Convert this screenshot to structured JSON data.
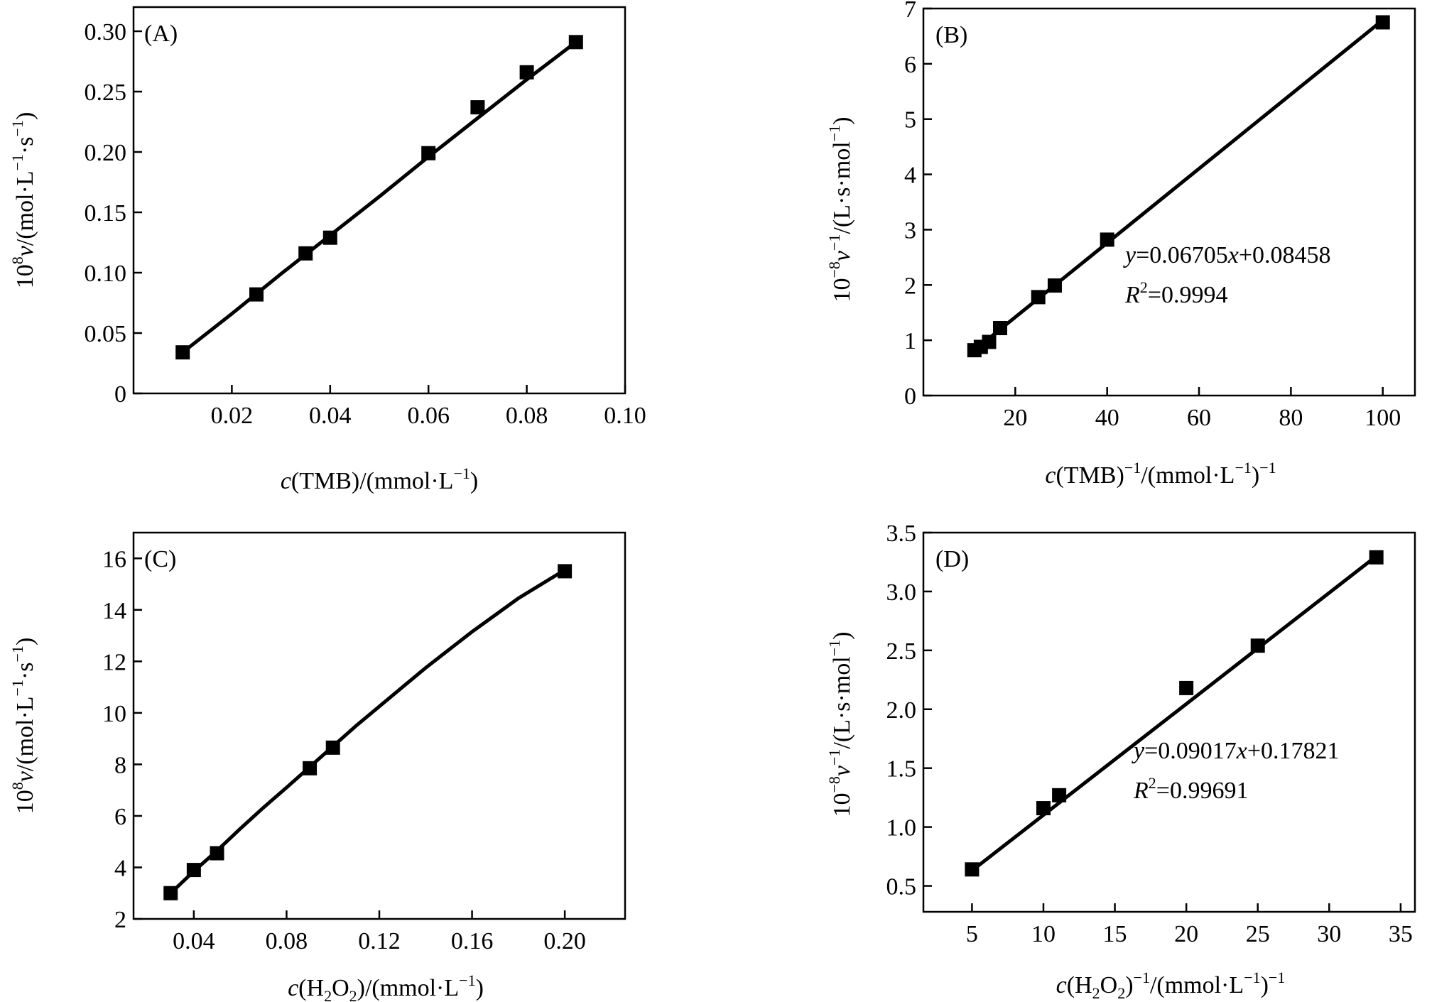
{
  "chart_data": [
    {
      "panel": "A",
      "type": "scatter",
      "panel_label": "(A)",
      "xlabel": {
        "italic": "c",
        "rest": "(TMB)/(mmol·L",
        "sup": "−1",
        "end": ")"
      },
      "ylabel": {
        "prefix": "10",
        "prefix_sup": "8",
        "var": "v",
        "rest": "/(mol·L",
        "sup1": "−1",
        "mid": "·s",
        "sup2": "−1",
        "end": ")"
      },
      "xlim": [
        0.0,
        0.1
      ],
      "ylim": [
        0.0,
        0.32
      ],
      "xticks": [
        0.02,
        0.04,
        0.06,
        0.08,
        0.1
      ],
      "xtick_labels": [
        "0.02",
        "0.04",
        "0.06",
        "0.08",
        "0.10"
      ],
      "yticks": [
        0,
        0.05,
        0.1,
        0.15,
        0.2,
        0.25,
        0.3
      ],
      "ytick_labels": [
        "0",
        "0.05",
        "0.10",
        "0.15",
        "0.20",
        "0.25",
        "0.30"
      ],
      "series": [
        {
          "name": "data",
          "x": [
            0.01,
            0.025,
            0.035,
            0.04,
            0.06,
            0.07,
            0.08,
            0.09
          ],
          "y": [
            0.034,
            0.082,
            0.116,
            0.129,
            0.199,
            0.237,
            0.266,
            0.291
          ]
        }
      ],
      "fit": {
        "x": [
          0.01,
          0.02,
          0.03,
          0.04,
          0.05,
          0.06,
          0.07,
          0.08,
          0.09
        ],
        "y": [
          0.034,
          0.066,
          0.099,
          0.131,
          0.163,
          0.196,
          0.228,
          0.26,
          0.291
        ]
      }
    },
    {
      "panel": "B",
      "type": "scatter",
      "panel_label": "(B)",
      "xlabel": {
        "italic": "c",
        "rest": "(TMB)",
        "sup1": "−1",
        "mid": "/(mmol·L",
        "sup2": "−1",
        "end": ")",
        "sup3": "−1"
      },
      "ylabel": {
        "prefix": "10",
        "prefix_sup": "−8",
        "var": "v",
        "var_sup": "−1",
        "rest": "/(L·s·mol",
        "sup1": "−1",
        "end": ")"
      },
      "xlim": [
        0,
        107
      ],
      "ylim": [
        0,
        7.0
      ],
      "xticks": [
        20,
        40,
        60,
        80,
        100
      ],
      "xtick_labels": [
        "20",
        "40",
        "60",
        "80",
        "100"
      ],
      "yticks": [
        0,
        1,
        2,
        3,
        4,
        5,
        6,
        7
      ],
      "ytick_labels": [
        "0",
        "1",
        "2",
        "3",
        "4",
        "5",
        "6",
        "7"
      ],
      "series": [
        {
          "name": "data",
          "x": [
            11.1,
            12.5,
            14.3,
            16.7,
            25,
            28.6,
            40,
            100
          ],
          "y": [
            0.82,
            0.88,
            0.97,
            1.22,
            1.78,
            1.99,
            2.82,
            6.75
          ]
        }
      ],
      "fit": {
        "x": [
          11.1,
          100
        ],
        "y": [
          0.82,
          6.79
        ]
      },
      "equation": {
        "y": "y",
        "eq": "=0.06705",
        "x": "x",
        "tail": "+0.08458"
      },
      "r2": {
        "R": "R",
        "sup": "2",
        "eq": "=0.9994"
      }
    },
    {
      "panel": "C",
      "type": "scatter",
      "panel_label": "(C)",
      "xlabel": {
        "italic": "c",
        "rest": "(H",
        "sub": "2",
        "rest2": "O",
        "sub2": "2",
        "rest3": ")/(mmol·L",
        "sup": "−1",
        "end": ")"
      },
      "ylabel": {
        "prefix": "10",
        "prefix_sup": "8",
        "var": "v",
        "rest": "/(mol·L",
        "sup1": "−1",
        "mid": "·s",
        "sup2": "−1",
        "end": ")"
      },
      "xlim": [
        0.014,
        0.226
      ],
      "ylim": [
        2,
        17
      ],
      "xticks": [
        0.04,
        0.08,
        0.12,
        0.16,
        0.2
      ],
      "xtick_labels": [
        "0.04",
        "0.08",
        "0.12",
        "0.16",
        "0.20"
      ],
      "yticks": [
        2,
        4,
        6,
        8,
        10,
        12,
        14,
        16
      ],
      "ytick_labels": [
        "2",
        "4",
        "6",
        "8",
        "10",
        "12",
        "14",
        "16"
      ],
      "series": [
        {
          "name": "data",
          "x": [
            0.03,
            0.04,
            0.05,
            0.09,
            0.1,
            0.2
          ],
          "y": [
            3.0,
            3.9,
            4.55,
            7.85,
            8.65,
            15.5
          ]
        }
      ],
      "fit": {
        "x": [
          0.03,
          0.04,
          0.05,
          0.06,
          0.07,
          0.08,
          0.09,
          0.1,
          0.11,
          0.12,
          0.13,
          0.14,
          0.15,
          0.16,
          0.17,
          0.18,
          0.19,
          0.2
        ],
        "y": [
          3.0,
          3.85,
          4.65,
          5.5,
          6.32,
          7.1,
          7.9,
          8.7,
          9.5,
          10.25,
          11.0,
          11.75,
          12.45,
          13.15,
          13.8,
          14.45,
          15.0,
          15.55
        ]
      }
    },
    {
      "panel": "D",
      "type": "scatter",
      "panel_label": "(D)",
      "xlabel": {
        "italic": "c",
        "rest": "(H",
        "sub": "2",
        "rest2": "O",
        "sub2": "2",
        "rest3": ")",
        "sup1": "−1",
        "mid": "/(mmol·L",
        "sup2": "−1",
        "end": ")",
        "sup3": "−1"
      },
      "ylabel": {
        "prefix": "10",
        "prefix_sup": "−8",
        "var": "v",
        "var_sup": "−1",
        "rest": "/(L·s·mol",
        "sup1": "−1",
        "end": ")"
      },
      "xlim": [
        1.6,
        36.0
      ],
      "ylim": [
        0.28,
        3.5
      ],
      "xticks": [
        5,
        10,
        15,
        20,
        25,
        30,
        35
      ],
      "xtick_labels": [
        "5",
        "10",
        "15",
        "20",
        "25",
        "30",
        "35"
      ],
      "yticks": [
        0.5,
        1.0,
        1.5,
        2.0,
        2.5,
        3.0,
        3.5
      ],
      "ytick_labels": [
        "0.5",
        "1.0",
        "1.5",
        "2.0",
        "2.5",
        "3.0",
        "3.5"
      ],
      "series": [
        {
          "name": "data",
          "x": [
            5,
            10,
            11.1,
            20,
            25,
            33.3
          ],
          "y": [
            0.64,
            1.16,
            1.27,
            2.18,
            2.54,
            3.29
          ]
        }
      ],
      "fit": {
        "x": [
          5,
          33.3
        ],
        "y": [
          0.63,
          3.3
        ]
      },
      "equation": {
        "y": "y",
        "eq": "=0.09017",
        "x": "x",
        "tail": "+0.17821"
      },
      "r2": {
        "R": "R",
        "sup": "2",
        "eq": "=0.99691"
      }
    }
  ]
}
